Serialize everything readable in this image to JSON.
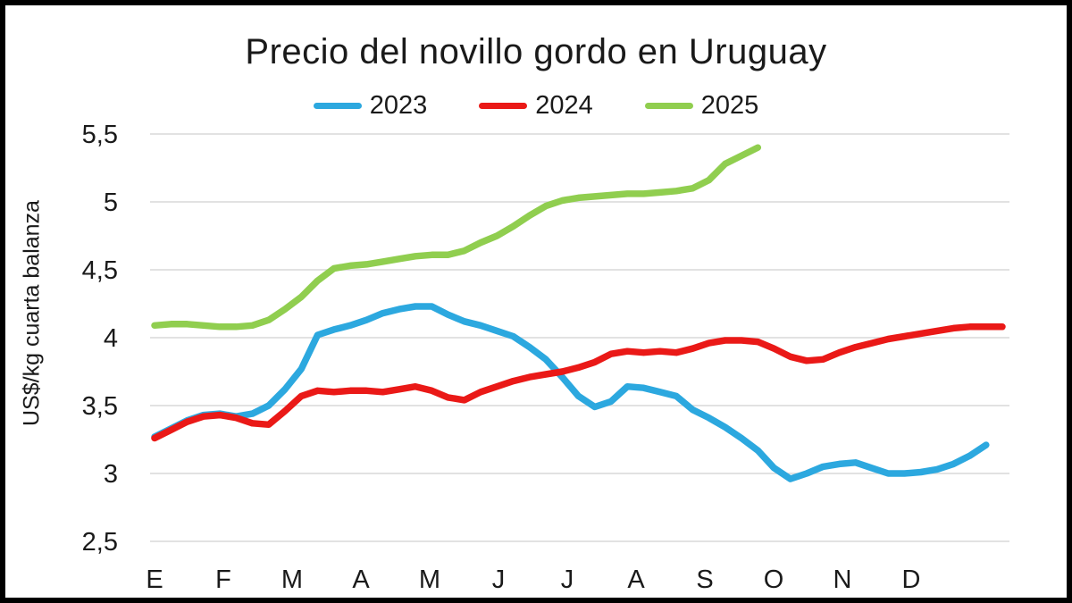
{
  "chart_data": {
    "type": "line",
    "title": "Precio del novillo gordo en Uruguay",
    "ylabel": "US$/kg cuarta balanza",
    "grid": true,
    "legend_position": "top",
    "x_axis": {
      "categories": [
        "E",
        "F",
        "M",
        "A",
        "M",
        "J",
        "J",
        "A",
        "S",
        "O",
        "N",
        "D"
      ],
      "note": "weekly data points grouped by month"
    },
    "y_axis": {
      "min": 2.5,
      "max": 5.5,
      "tick_values": [
        5.5,
        5.0,
        4.5,
        4.0,
        3.5,
        3.0,
        2.5
      ],
      "tick_labels": [
        "5,5",
        "5",
        "4,5",
        "4",
        "3,5",
        "3",
        "2,5"
      ]
    },
    "colors": {
      "grid": "#d9d9d9",
      "series_2023": "#2ca8df",
      "series_2024": "#ea1917",
      "series_2025": "#90ce4f"
    },
    "series": [
      {
        "name": "2023",
        "color": "#2ca8df",
        "values": [
          3.27,
          3.33,
          3.39,
          3.43,
          3.44,
          3.42,
          3.44,
          3.5,
          3.62,
          3.77,
          4.02,
          4.06,
          4.09,
          4.13,
          4.18,
          4.21,
          4.23,
          4.23,
          4.17,
          4.12,
          4.09,
          4.05,
          4.01,
          3.93,
          3.84,
          3.71,
          3.57,
          3.49,
          3.53,
          3.64,
          3.63,
          3.6,
          3.57,
          3.47,
          3.41,
          3.34,
          3.26,
          3.17,
          3.04,
          2.96,
          3.0,
          3.05,
          3.07,
          3.08,
          3.04,
          3.0,
          3.0,
          3.01,
          3.03,
          3.07,
          3.13,
          3.21
        ]
      },
      {
        "name": "2024",
        "color": "#ea1917",
        "values": [
          3.26,
          3.32,
          3.38,
          3.42,
          3.43,
          3.41,
          3.37,
          3.36,
          3.46,
          3.57,
          3.61,
          3.6,
          3.61,
          3.61,
          3.6,
          3.62,
          3.64,
          3.61,
          3.56,
          3.54,
          3.6,
          3.64,
          3.68,
          3.71,
          3.73,
          3.75,
          3.78,
          3.82,
          3.88,
          3.9,
          3.89,
          3.9,
          3.89,
          3.92,
          3.96,
          3.98,
          3.98,
          3.97,
          3.92,
          3.86,
          3.83,
          3.84,
          3.89,
          3.93,
          3.96,
          3.99,
          4.01,
          4.03,
          4.05,
          4.07,
          4.08,
          4.08,
          4.08
        ]
      },
      {
        "name": "2025",
        "color": "#90ce4f",
        "values": [
          4.09,
          4.1,
          4.1,
          4.09,
          4.08,
          4.08,
          4.09,
          4.13,
          4.21,
          4.3,
          4.42,
          4.51,
          4.53,
          4.54,
          4.56,
          4.58,
          4.6,
          4.61,
          4.61,
          4.64,
          4.7,
          4.75,
          4.82,
          4.9,
          4.97,
          5.01,
          5.03,
          5.04,
          5.05,
          5.06,
          5.06,
          5.07,
          5.08,
          5.1,
          5.16,
          5.28,
          5.34,
          5.4
        ]
      }
    ]
  }
}
